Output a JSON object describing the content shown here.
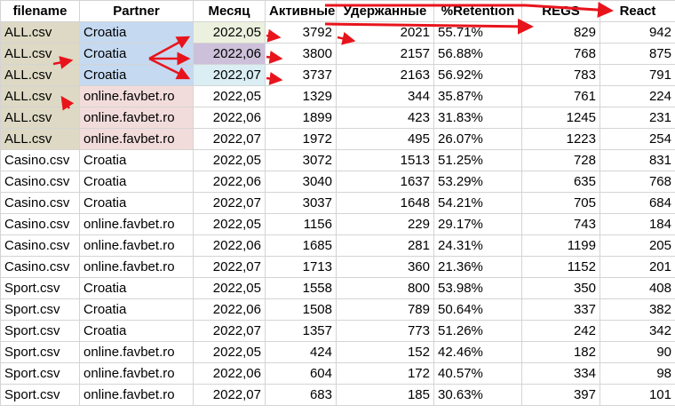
{
  "headers": [
    "filename",
    "Partner",
    "Месяц",
    "Активные",
    "Удержанные",
    "%Retention",
    "REGS",
    "React"
  ],
  "rows": [
    [
      "ALL.csv",
      "Croatia",
      "2022,05",
      "3792",
      "2021",
      "55.71%",
      "829",
      "942"
    ],
    [
      "ALL.csv",
      "Croatia",
      "2022,06",
      "3800",
      "2157",
      "56.88%",
      "768",
      "875"
    ],
    [
      "ALL.csv",
      "Croatia",
      "2022,07",
      "3737",
      "2163",
      "56.92%",
      "783",
      "791"
    ],
    [
      "ALL.csv",
      "online.favbet.ro",
      "2022,05",
      "1329",
      "344",
      "35.87%",
      "761",
      "224"
    ],
    [
      "ALL.csv",
      "online.favbet.ro",
      "2022,06",
      "1899",
      "423",
      "31.83%",
      "1245",
      "231"
    ],
    [
      "ALL.csv",
      "online.favbet.ro",
      "2022,07",
      "1972",
      "495",
      "26.07%",
      "1223",
      "254"
    ],
    [
      "Casino.csv",
      "Croatia",
      "2022,05",
      "3072",
      "1513",
      "51.25%",
      "728",
      "831"
    ],
    [
      "Casino.csv",
      "Croatia",
      "2022,06",
      "3040",
      "1637",
      "53.29%",
      "635",
      "768"
    ],
    [
      "Casino.csv",
      "Croatia",
      "2022,07",
      "3037",
      "1648",
      "54.21%",
      "705",
      "684"
    ],
    [
      "Casino.csv",
      "online.favbet.ro",
      "2022,05",
      "1156",
      "229",
      "29.17%",
      "743",
      "184"
    ],
    [
      "Casino.csv",
      "online.favbet.ro",
      "2022,06",
      "1685",
      "281",
      "24.31%",
      "1199",
      "205"
    ],
    [
      "Casino.csv",
      "online.favbet.ro",
      "2022,07",
      "1713",
      "360",
      "21.36%",
      "1152",
      "201"
    ],
    [
      "Sport.csv",
      "Croatia",
      "2022,05",
      "1558",
      "800",
      "53.98%",
      "350",
      "408"
    ],
    [
      "Sport.csv",
      "Croatia",
      "2022,06",
      "1508",
      "789",
      "50.64%",
      "337",
      "382"
    ],
    [
      "Sport.csv",
      "Croatia",
      "2022,07",
      "1357",
      "773",
      "51.26%",
      "242",
      "342"
    ],
    [
      "Sport.csv",
      "online.favbet.ro",
      "2022,05",
      "424",
      "152",
      "42.46%",
      "182",
      "90"
    ],
    [
      "Sport.csv",
      "online.favbet.ro",
      "2022,06",
      "604",
      "172",
      "40.57%",
      "334",
      "98"
    ],
    [
      "Sport.csv",
      "online.favbet.ro",
      "2022,07",
      "683",
      "185",
      "30.63%",
      "397",
      "101"
    ]
  ],
  "colors": {
    "annotation_red": "#e8141c",
    "highlight_tan": "#ddd9c4",
    "highlight_blue": "#c5d9f1",
    "highlight_pink": "#f2dcdb",
    "highlight_green": "#ebf1de",
    "highlight_purple": "#ccc0da",
    "highlight_cyan": "#daeef3",
    "grid_line": "#d4d4d4"
  },
  "annotations": [
    "red-arrow",
    "red-arrow",
    "red-arrow",
    "red-arrow",
    "red-arrow",
    "red-arrow",
    "red-arrow",
    "red-arrow",
    "red-arrow",
    "red-arrow",
    "red-line"
  ]
}
